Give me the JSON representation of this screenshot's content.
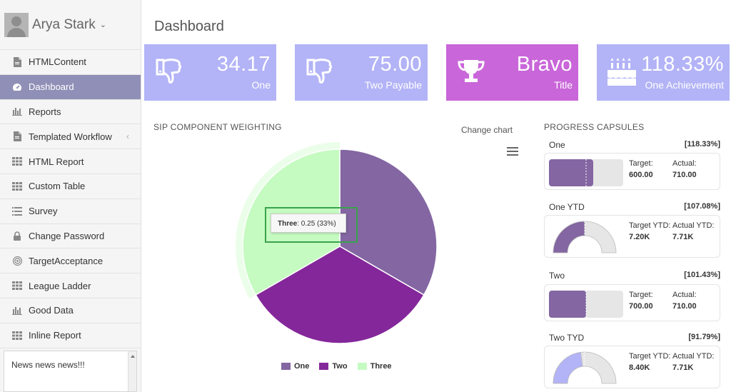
{
  "user": {
    "name": "Arya Stark",
    "caret": "⌄"
  },
  "sidebar": {
    "items": [
      {
        "label": "HTMLContent",
        "icon": "file-icon"
      },
      {
        "label": "Dashboard",
        "icon": "dashboard-icon",
        "active": true
      },
      {
        "label": "Reports",
        "icon": "bar-chart-icon"
      },
      {
        "label": "Templated Workflow",
        "icon": "file-icon",
        "arrow": "‹"
      },
      {
        "label": "HTML Report",
        "icon": "grid-icon"
      },
      {
        "label": "Custom Table",
        "icon": "grid-icon"
      },
      {
        "label": "Survey",
        "icon": "list-icon"
      },
      {
        "label": "Change Password",
        "icon": "lock-icon"
      },
      {
        "label": "TargetAcceptance",
        "icon": "target-icon"
      },
      {
        "label": "League Ladder",
        "icon": "grid-icon"
      },
      {
        "label": "Good Data",
        "icon": "bar-chart-icon"
      },
      {
        "label": "Inline Report",
        "icon": "grid-icon"
      }
    ],
    "news": "News news news!!!"
  },
  "page": {
    "title": "Dashboard"
  },
  "tiles": [
    {
      "value": "34.17",
      "label": "One",
      "icon": "thumbs-down-icon",
      "color": "#b3b3f7"
    },
    {
      "value": "75.00",
      "label": "Two Payable",
      "icon": "thumbs-down-icon",
      "color": "#b3b3f7"
    },
    {
      "value": "Bravo",
      "label": "Title",
      "icon": "trophy-icon",
      "color": "#c966d9"
    },
    {
      "value": "118.33%",
      "label": "One Achievement",
      "icon": "birthday-cake-icon",
      "color": "#b3b3f7"
    }
  ],
  "sip": {
    "title": "SIP COMPONENT WEIGHTING",
    "change_chart": "Change chart",
    "tooltip_label": "Three",
    "tooltip_value": ": 0.25 (33%)"
  },
  "chart_data": {
    "type": "pie",
    "title": "SIP COMPONENT WEIGHTING",
    "slices": [
      {
        "name": "One",
        "value": 0.25,
        "color": "#8366a2"
      },
      {
        "name": "Two",
        "value": 0.25,
        "color": "#84279a"
      },
      {
        "name": "Three",
        "value": 0.25,
        "color": "#c5fbc1"
      }
    ],
    "legend_placement": "bottom"
  },
  "capsules": {
    "title": "PROGRESS CAPSULES",
    "items": [
      {
        "name": "One",
        "pct": "[118.33%]",
        "type": "bar",
        "target_label": "Target:",
        "target": "600.00",
        "actual_label": "Actual:",
        "actual": "710.00",
        "fill": 0.6,
        "color": "#8366a2"
      },
      {
        "name": "One YTD",
        "pct": "[107.08%]",
        "type": "gauge",
        "target_label": "Target YTD:",
        "target": "7.20K",
        "actual_label": "Actual YTD:",
        "actual": "7.71K",
        "fill": 0.5,
        "color": "#8366a2"
      },
      {
        "name": "Two",
        "pct": "[101.43%]",
        "type": "bar",
        "target_label": "Target:",
        "target": "700.00",
        "actual_label": "Actual:",
        "actual": "710.00",
        "fill": 0.5,
        "color": "#8366a2"
      },
      {
        "name": "Two TYD",
        "pct": "[91.79%]",
        "type": "gauge",
        "target_label": "Target YTD:",
        "target": "8.40K",
        "actual_label": "Actual YTD:",
        "actual": "7.71K",
        "fill": 0.46,
        "color": "#b3b3f7"
      }
    ]
  }
}
